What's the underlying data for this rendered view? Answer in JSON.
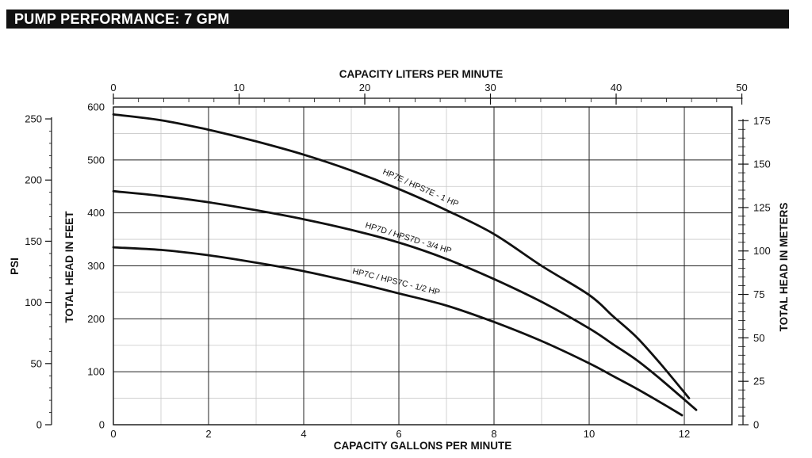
{
  "header": {
    "title": "PUMP PERFORMANCE: 7 GPM"
  },
  "chart_data": {
    "type": "line",
    "x_label": "CAPACITY GALLONS PER MINUTE",
    "x_range": [
      0,
      13
    ],
    "x_ticks": [
      "0",
      "2",
      "4",
      "6",
      "8",
      "10",
      "12"
    ],
    "y_label": "TOTAL HEAD IN FEET",
    "y_range": [
      0,
      600
    ],
    "y_ticks": [
      "0",
      "100",
      "200",
      "300",
      "400",
      "500",
      "600"
    ],
    "top_axis": {
      "label": "CAPACITY LITERS PER MINUTE",
      "ticks": [
        "0",
        "10",
        "20",
        "30",
        "40",
        "50"
      ]
    },
    "psi_axis": {
      "label": "PSI",
      "ticks": [
        "0",
        "50",
        "100",
        "150",
        "200",
        "250"
      ]
    },
    "meters_axis": {
      "label": "TOTAL HEAD IN METERS",
      "ticks": [
        "0",
        "25",
        "50",
        "75",
        "100",
        "125",
        "150",
        "175"
      ]
    },
    "grid": true,
    "series": [
      {
        "name": "HP7E / HPS7E - 1 HP",
        "x": [
          0,
          1,
          2,
          3,
          4,
          5,
          6,
          7,
          8,
          9,
          10,
          10.5,
          11,
          11.5,
          12.1
        ],
        "y": [
          586,
          575,
          557,
          535,
          510,
          480,
          445,
          405,
          360,
          300,
          245,
          205,
          165,
          115,
          50
        ]
      },
      {
        "name": "HP7D / HPS7D - 3/4 HP",
        "x": [
          0,
          1,
          2,
          3,
          4,
          5,
          6,
          7,
          8,
          9,
          10,
          10.5,
          11,
          11.5,
          12.25
        ],
        "y": [
          441,
          432,
          420,
          405,
          388,
          368,
          344,
          313,
          275,
          232,
          182,
          152,
          122,
          86,
          28
        ]
      },
      {
        "name": "HP7C / HPS7C - 1/2 HP",
        "x": [
          0,
          1,
          2,
          3,
          4,
          5,
          6,
          7,
          8,
          9,
          10,
          10.5,
          11,
          11.5,
          11.95
        ],
        "y": [
          335,
          330,
          320,
          306,
          290,
          270,
          248,
          225,
          194,
          158,
          116,
          92,
          68,
          42,
          18
        ]
      }
    ]
  }
}
